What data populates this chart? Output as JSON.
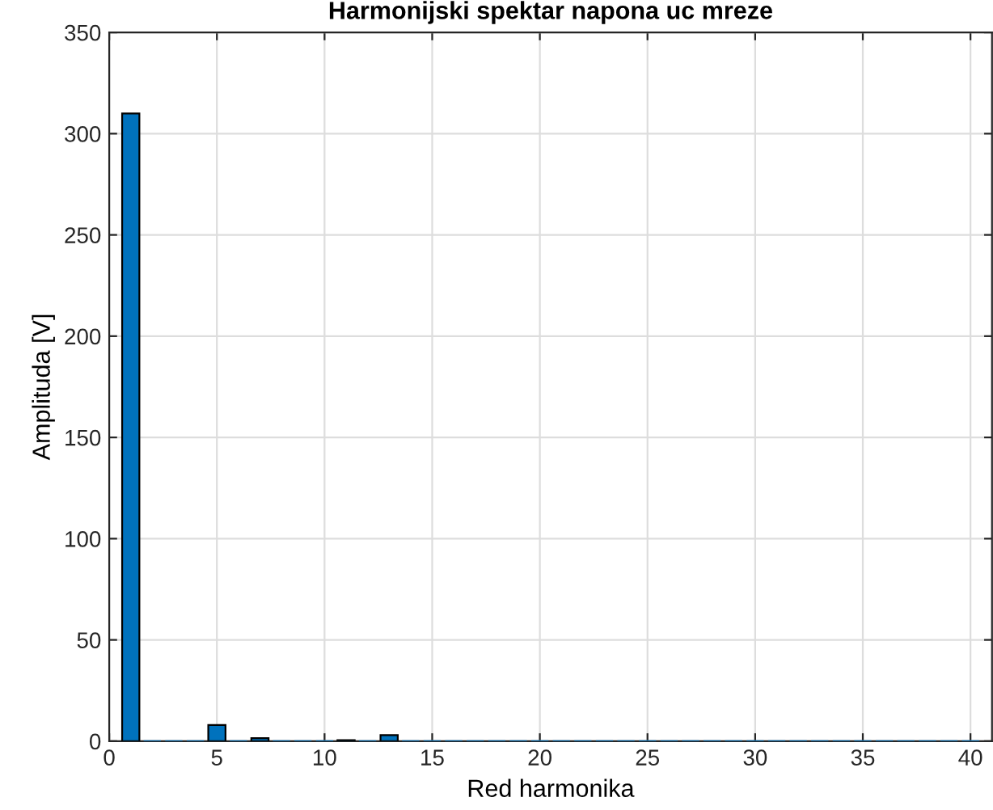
{
  "chart_data": {
    "type": "bar",
    "title": "Harmonijski spektar napona uc mreze",
    "xlabel": "Red harmonika",
    "ylabel": "Amplituda [V]",
    "x": [
      1,
      2,
      3,
      4,
      5,
      6,
      7,
      8,
      9,
      10,
      11,
      12,
      13,
      14,
      15,
      16,
      17,
      18,
      19,
      20,
      21,
      22,
      23,
      24,
      25,
      26,
      27,
      28,
      29,
      30,
      31,
      32,
      33,
      34,
      35,
      36,
      37,
      38,
      39,
      40
    ],
    "values": [
      310,
      0,
      0,
      0,
      8,
      0,
      1.5,
      0,
      0,
      0,
      0.5,
      0,
      3,
      0,
      0,
      0,
      0,
      0,
      0,
      0,
      0,
      0,
      0,
      0,
      0,
      0,
      0,
      0,
      0,
      0,
      0,
      0,
      0,
      0,
      0,
      0,
      0,
      0,
      0,
      0
    ],
    "color": "#0072bd",
    "xlim": [
      0,
      41
    ],
    "xticks": [
      0,
      5,
      10,
      15,
      20,
      25,
      30,
      35,
      40
    ],
    "ylim": [
      0,
      350
    ],
    "yticks": [
      0,
      50,
      100,
      150,
      200,
      250,
      300,
      350
    ],
    "grid": true
  }
}
